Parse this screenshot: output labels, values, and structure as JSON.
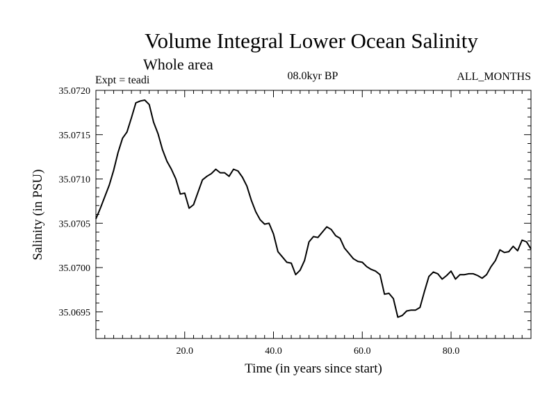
{
  "chart_data": {
    "type": "line",
    "title": "Volume Integral Lower Ocean Salinity",
    "subtitle": "Whole area",
    "experiment": "Expt = teadi",
    "period": "08.0kyr BP",
    "months": "ALL_MONTHS",
    "xlabel": "Time (in years since start)",
    "ylabel": "Salinity (in PSU)",
    "xlim": [
      0,
      98
    ],
    "ylim": [
      35.0692,
      35.072
    ],
    "x_ticks": [
      20,
      40,
      60,
      80
    ],
    "x_tick_labels": [
      "20.0",
      "40.0",
      "60.0",
      "80.0"
    ],
    "y_ticks": [
      35.0695,
      35.07,
      35.0705,
      35.071,
      35.0715,
      35.072
    ],
    "y_tick_labels": [
      "35.0695",
      "35.0700",
      "35.0705",
      "35.0710",
      "35.0715",
      "35.0720"
    ],
    "series": [
      {
        "name": "Salinity",
        "x": [
          0,
          1,
          2,
          3,
          4,
          5,
          6,
          7,
          8,
          9,
          10,
          11,
          12,
          13,
          14,
          15,
          16,
          17,
          18,
          19,
          20,
          21,
          22,
          23,
          24,
          25,
          26,
          27,
          28,
          29,
          30,
          31,
          32,
          33,
          34,
          35,
          36,
          37,
          38,
          39,
          40,
          41,
          42,
          43,
          44,
          45,
          46,
          47,
          48,
          49,
          50,
          51,
          52,
          53,
          54,
          55,
          56,
          57,
          58,
          59,
          60,
          61,
          62,
          63,
          64,
          65,
          66,
          67,
          68,
          69,
          70,
          71,
          72,
          73,
          74,
          75,
          76,
          77,
          78,
          79,
          80,
          81,
          82,
          83,
          84,
          85,
          86,
          87,
          88,
          89,
          90,
          91,
          92,
          93,
          94,
          95,
          96,
          97,
          98
        ],
        "y": [
          35.07055,
          35.07067,
          35.0708,
          35.07093,
          35.0711,
          35.0713,
          35.07146,
          35.07153,
          35.07169,
          35.07186,
          35.07188,
          35.07189,
          35.07184,
          35.07164,
          35.07151,
          35.07133,
          35.0712,
          35.07111,
          35.071,
          35.07083,
          35.07084,
          35.07067,
          35.07071,
          35.07085,
          35.07099,
          35.07103,
          35.07106,
          35.07111,
          35.07107,
          35.07107,
          35.07103,
          35.07111,
          35.07109,
          35.07102,
          35.07092,
          35.07076,
          35.07063,
          35.07054,
          35.07049,
          35.0705,
          35.07038,
          35.07018,
          35.07012,
          35.07006,
          35.07005,
          35.06992,
          35.06997,
          35.07008,
          35.07029,
          35.07035,
          35.07034,
          35.0704,
          35.07046,
          35.07043,
          35.07036,
          35.07033,
          35.07022,
          35.07016,
          35.0701,
          35.07007,
          35.07006,
          35.07001,
          35.06998,
          35.06996,
          35.06992,
          35.0697,
          35.06971,
          35.06965,
          35.06944,
          35.06946,
          35.06951,
          35.06952,
          35.06952,
          35.06955,
          35.06973,
          35.0699,
          35.06995,
          35.06993,
          35.06987,
          35.06991,
          35.06996,
          35.06987,
          35.06992,
          35.06992,
          35.06993,
          35.06993,
          35.06991,
          35.06988,
          35.06992,
          35.07001,
          35.07008,
          35.0702,
          35.07017,
          35.07018,
          35.07024,
          35.07019,
          35.07031,
          35.07029,
          35.07021
        ]
      }
    ],
    "grid": false
  }
}
